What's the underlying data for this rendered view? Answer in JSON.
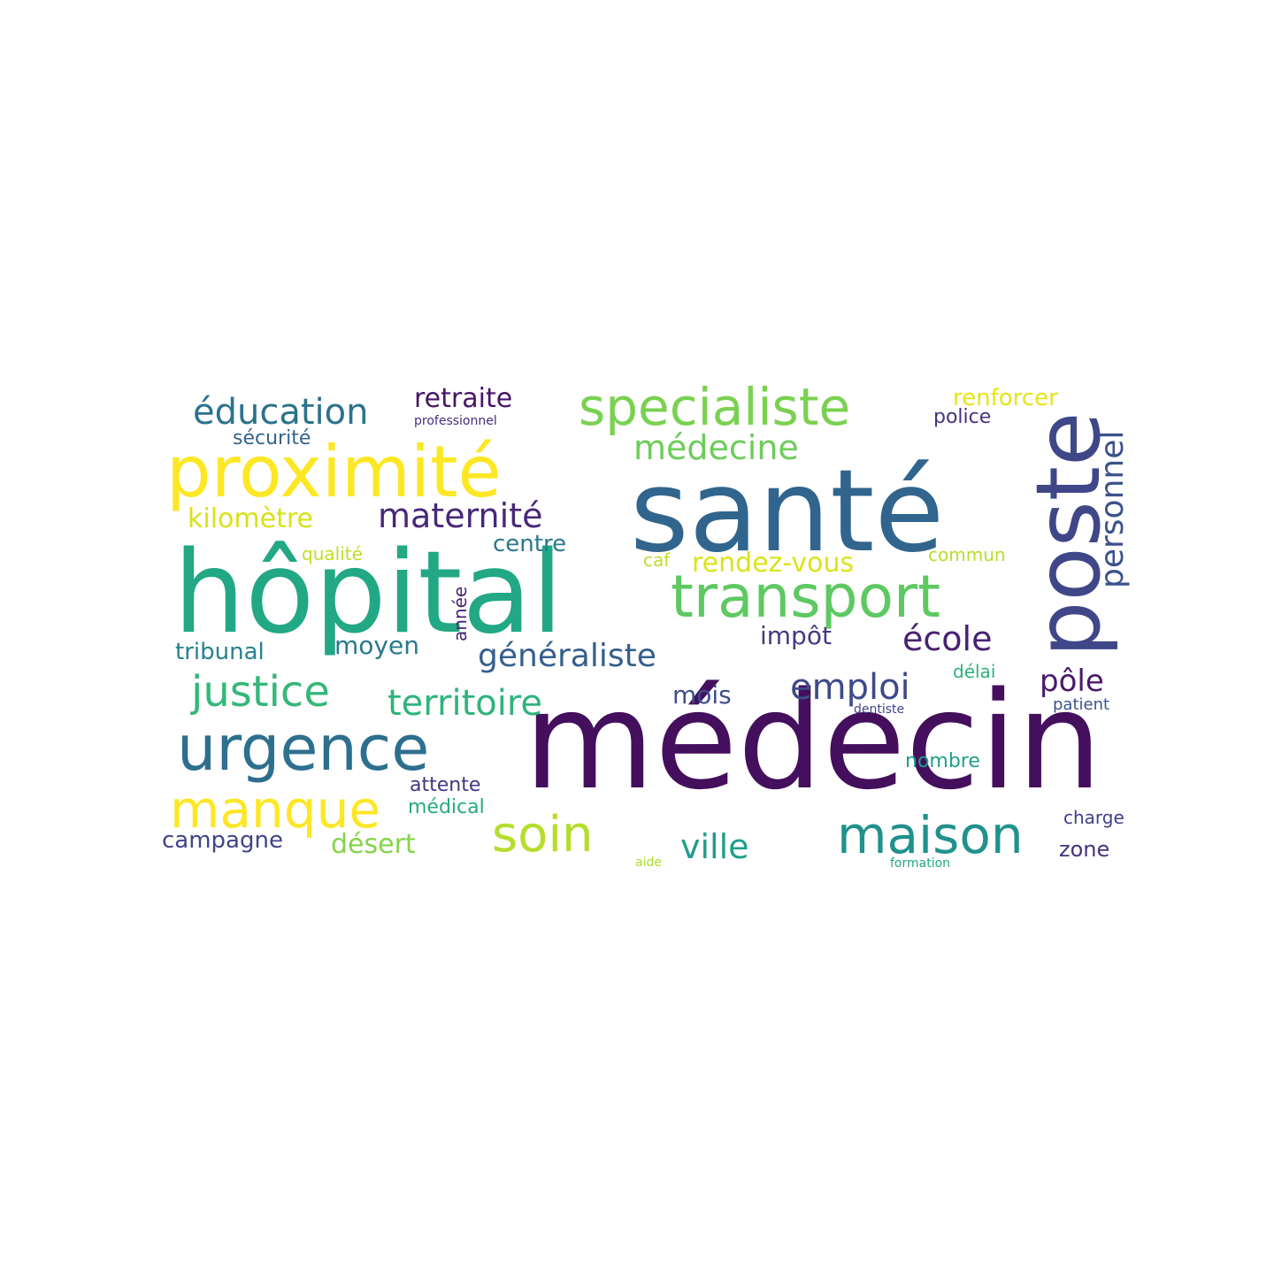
{
  "word_cloud": {
    "words": [
      {
        "text": "médecin",
        "color": "#440f5c"
      },
      {
        "text": "santé",
        "color": "#31658d"
      },
      {
        "text": "hôpital",
        "color": "#22a884"
      },
      {
        "text": "poste",
        "color": "#3f4788"
      },
      {
        "text": "proximité",
        "color": "#fde725"
      },
      {
        "text": "transport",
        "color": "#5ec962"
      },
      {
        "text": "urgence",
        "color": "#2d6f8e"
      },
      {
        "text": "specialiste",
        "color": "#7ad151"
      },
      {
        "text": "manque",
        "color": "#fde725"
      },
      {
        "text": "maison",
        "color": "#21918c"
      },
      {
        "text": "soin",
        "color": "#b5de2b"
      },
      {
        "text": "justice",
        "color": "#35b779"
      },
      {
        "text": "éducation",
        "color": "#2c728e"
      },
      {
        "text": "personnel",
        "color": "#3b528b"
      },
      {
        "text": "territoire",
        "color": "#2fb47c"
      },
      {
        "text": "emploi",
        "color": "#3e4a89"
      },
      {
        "text": "médecine",
        "color": "#6ccd5a"
      },
      {
        "text": "ville",
        "color": "#1f9e89"
      },
      {
        "text": "maternité",
        "color": "#482878"
      },
      {
        "text": "généraliste",
        "color": "#355f8d"
      },
      {
        "text": "école",
        "color": "#482173"
      },
      {
        "text": "pôle",
        "color": "#481a6c"
      },
      {
        "text": "rendez-vous",
        "color": "#dde318"
      },
      {
        "text": "retraite",
        "color": "#481467"
      },
      {
        "text": "kilomètre",
        "color": "#d8e219"
      },
      {
        "text": "désert",
        "color": "#84d44b"
      },
      {
        "text": "campagne",
        "color": "#414487"
      },
      {
        "text": "moyen",
        "color": "#29798e"
      },
      {
        "text": "tribunal",
        "color": "#26828e"
      },
      {
        "text": "impôt",
        "color": "#443983"
      },
      {
        "text": "mois",
        "color": "#3d4e8a"
      },
      {
        "text": "centre",
        "color": "#2a788e"
      },
      {
        "text": "renforcer",
        "color": "#e5e419"
      },
      {
        "text": "attente",
        "color": "#453781"
      },
      {
        "text": "médical",
        "color": "#25ab82"
      },
      {
        "text": "nombre",
        "color": "#1fa088"
      },
      {
        "text": "police",
        "color": "#46337f"
      },
      {
        "text": "zone",
        "color": "#46327e"
      },
      {
        "text": "qualité",
        "color": "#bddf26"
      },
      {
        "text": "sécurité",
        "color": "#33638d"
      },
      {
        "text": "année",
        "color": "#482576"
      },
      {
        "text": "charge",
        "color": "#433e85"
      },
      {
        "text": "caf",
        "color": "#c0df25"
      },
      {
        "text": "commun",
        "color": "#b8de29"
      },
      {
        "text": "délai",
        "color": "#2eb37c"
      },
      {
        "text": "patient",
        "color": "#3a548c"
      },
      {
        "text": "professionnel",
        "color": "#472d7b"
      },
      {
        "text": "dentiste",
        "color": "#404688"
      },
      {
        "text": "formation",
        "color": "#22a884"
      },
      {
        "text": "aide",
        "color": "#addc30"
      }
    ]
  }
}
